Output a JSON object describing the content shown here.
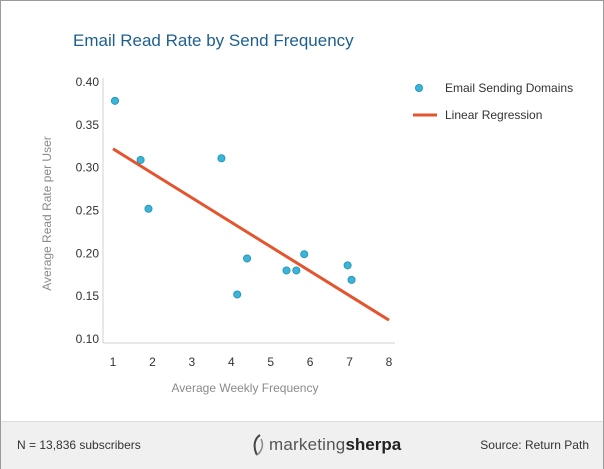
{
  "chart_data": {
    "type": "scatter",
    "title": "Email Read Rate by Send Frequency",
    "xlabel": "Average Weekly Frequency",
    "ylabel": "Average Read Rate per User",
    "xlim": [
      1,
      8
    ],
    "ylim": [
      0.1,
      0.4
    ],
    "x_ticks": [
      "1",
      "2",
      "3",
      "4",
      "5",
      "6",
      "7",
      "8"
    ],
    "y_ticks": [
      "0.10",
      "0.15",
      "0.20",
      "0.25",
      "0.30",
      "0.35",
      "0.40"
    ],
    "legend_position": "right",
    "series": [
      {
        "name": "Email Sending Domains",
        "kind": "points",
        "color": "#3bb4d8",
        "points": [
          {
            "x": 1.05,
            "y": 0.378
          },
          {
            "x": 1.7,
            "y": 0.309
          },
          {
            "x": 1.9,
            "y": 0.252
          },
          {
            "x": 3.75,
            "y": 0.311
          },
          {
            "x": 4.15,
            "y": 0.152
          },
          {
            "x": 4.4,
            "y": 0.194
          },
          {
            "x": 5.4,
            "y": 0.18
          },
          {
            "x": 5.65,
            "y": 0.18
          },
          {
            "x": 5.85,
            "y": 0.199
          },
          {
            "x": 6.95,
            "y": 0.186
          },
          {
            "x": 7.05,
            "y": 0.169
          }
        ]
      },
      {
        "name": "Linear Regression",
        "kind": "line",
        "color": "#e4552f",
        "points": [
          {
            "x": 1,
            "y": 0.322
          },
          {
            "x": 8,
            "y": 0.122
          }
        ]
      }
    ]
  },
  "footer": {
    "sample_note": "N = 13,836 subscribers",
    "source": "Source: Return Path",
    "logo_part1": "marketing",
    "logo_part2": "sherpa"
  }
}
